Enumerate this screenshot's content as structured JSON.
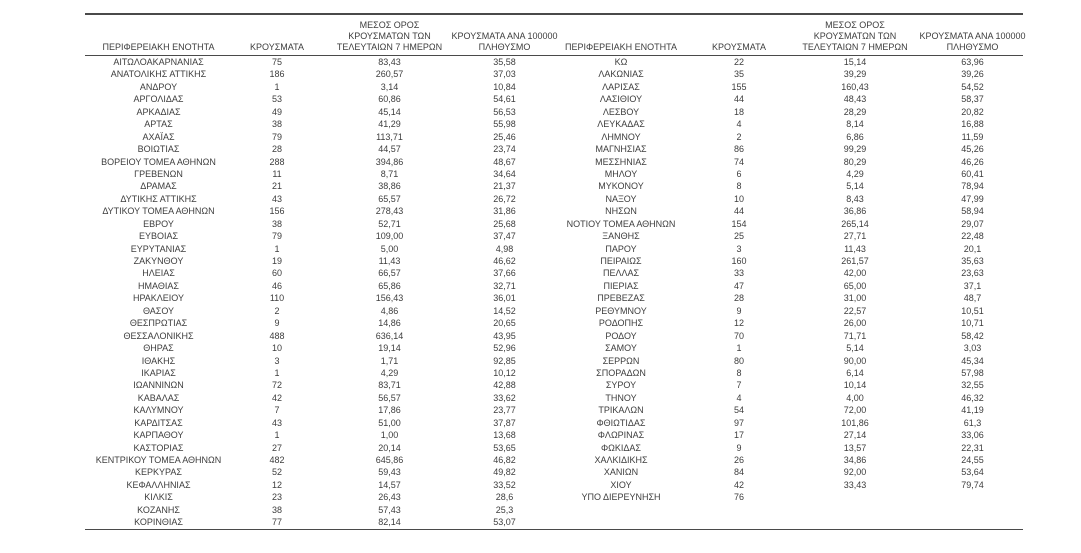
{
  "colors": {
    "background": "#ffffff",
    "text": "#3d3d3d",
    "border": "#4a4a4a"
  },
  "table": {
    "header_left": [
      [
        "ΠΕΡΙΦΕΡΕΙΑΚΗ ΕΝΟΤΗΤΑ"
      ],
      [
        "ΚΡΟΥΣΜΑΤΑ"
      ],
      [
        "ΜΕΣΟΣ ΟΡΟΣ",
        "ΚΡΟΥΣΜΑΤΩΝ ΤΩΝ",
        "ΤΕΛΕΥΤΑΙΩΝ 7 ΗΜΕΡΩΝ"
      ],
      [
        "ΚΡΟΥΣΜΑΤΑ ΑΝΑ 100000",
        "ΠΛΗΘΥΣΜΟ"
      ]
    ],
    "header_right": [
      [
        "ΠΕΡΙΦΕΡΕΙΑΚΗ ΕΝΟΤΗΤΑ"
      ],
      [
        "ΚΡΟΥΣΜΑΤΑ"
      ],
      [
        "ΜΕΣΟΣ ΟΡΟΣ",
        "ΚΡΟΥΣΜΑΤΩΝ ΤΩΝ",
        "ΤΕΛΕΥΤΑΙΩΝ 7 ΗΜΕΡΩΝ"
      ],
      [
        "ΚΡΟΥΣΜΑΤΑ ΑΝΑ 100000",
        "ΠΛΗΘΥΣΜΟ"
      ]
    ],
    "rows_left": [
      [
        "ΑΙΤΩΛΟΑΚΑΡΝΑΝΙΑΣ",
        "75",
        "83,43",
        "35,58"
      ],
      [
        "ΑΝΑΤΟΛΙΚΗΣ ΑΤΤΙΚΗΣ",
        "186",
        "260,57",
        "37,03"
      ],
      [
        "ΑΝΔΡΟΥ",
        "1",
        "3,14",
        "10,84"
      ],
      [
        "ΑΡΓΟΛΙΔΑΣ",
        "53",
        "60,86",
        "54,61"
      ],
      [
        "ΑΡΚΑΔΙΑΣ",
        "49",
        "45,14",
        "56,53"
      ],
      [
        "ΑΡΤΑΣ",
        "38",
        "41,29",
        "55,98"
      ],
      [
        "ΑΧΑΪΑΣ",
        "79",
        "113,71",
        "25,46"
      ],
      [
        "ΒΟΙΩΤΙΑΣ",
        "28",
        "44,57",
        "23,74"
      ],
      [
        "ΒΟΡΕΙΟΥ ΤΟΜΕΑ ΑΘΗΝΩΝ",
        "288",
        "394,86",
        "48,67"
      ],
      [
        "ΓΡΕΒΕΝΩΝ",
        "11",
        "8,71",
        "34,64"
      ],
      [
        "ΔΡΑΜΑΣ",
        "21",
        "38,86",
        "21,37"
      ],
      [
        "ΔΥΤΙΚΗΣ ΑΤΤΙΚΗΣ",
        "43",
        "65,57",
        "26,72"
      ],
      [
        "ΔΥΤΙΚΟΥ ΤΟΜΕΑ ΑΘΗΝΩΝ",
        "156",
        "278,43",
        "31,86"
      ],
      [
        "ΕΒΡΟΥ",
        "38",
        "52,71",
        "25,68"
      ],
      [
        "ΕΥΒΟΙΑΣ",
        "79",
        "109,00",
        "37,47"
      ],
      [
        "ΕΥΡΥΤΑΝΙΑΣ",
        "1",
        "5,00",
        "4,98"
      ],
      [
        "ΖΑΚΥΝΘΟΥ",
        "19",
        "11,43",
        "46,62"
      ],
      [
        "ΗΛΕΙΑΣ",
        "60",
        "66,57",
        "37,66"
      ],
      [
        "ΗΜΑΘΙΑΣ",
        "46",
        "65,86",
        "32,71"
      ],
      [
        "ΗΡΑΚΛΕΙΟΥ",
        "110",
        "156,43",
        "36,01"
      ],
      [
        "ΘΑΣΟΥ",
        "2",
        "4,86",
        "14,52"
      ],
      [
        "ΘΕΣΠΡΩΤΙΑΣ",
        "9",
        "14,86",
        "20,65"
      ],
      [
        "ΘΕΣΣΑΛΟΝΙΚΗΣ",
        "488",
        "636,14",
        "43,95"
      ],
      [
        "ΘΗΡΑΣ",
        "10",
        "19,14",
        "52,96"
      ],
      [
        "ΙΘΑΚΗΣ",
        "3",
        "1,71",
        "92,85"
      ],
      [
        "ΙΚΑΡΙΑΣ",
        "1",
        "4,29",
        "10,12"
      ],
      [
        "ΙΩΑΝΝΙΝΩΝ",
        "72",
        "83,71",
        "42,88"
      ],
      [
        "ΚΑΒΑΛΑΣ",
        "42",
        "56,57",
        "33,62"
      ],
      [
        "ΚΑΛΥΜΝΟΥ",
        "7",
        "17,86",
        "23,77"
      ],
      [
        "ΚΑΡΔΙΤΣΑΣ",
        "43",
        "51,00",
        "37,87"
      ],
      [
        "ΚΑΡΠΑΘΟΥ",
        "1",
        "1,00",
        "13,68"
      ],
      [
        "ΚΑΣΤΟΡΙΑΣ",
        "27",
        "20,14",
        "53,65"
      ],
      [
        "ΚΕΝΤΡΙΚΟΥ ΤΟΜΕΑ ΑΘΗΝΩΝ",
        "482",
        "645,86",
        "46,82"
      ],
      [
        "ΚΕΡΚΥΡΑΣ",
        "52",
        "59,43",
        "49,82"
      ],
      [
        "ΚΕΦΑΛΛΗΝΙΑΣ",
        "12",
        "14,57",
        "33,52"
      ],
      [
        "ΚΙΛΚΙΣ",
        "23",
        "26,43",
        "28,6"
      ],
      [
        "ΚΟΖΑΝΗΣ",
        "38",
        "57,43",
        "25,3"
      ],
      [
        "ΚΟΡΙΝΘΙΑΣ",
        "77",
        "82,14",
        "53,07"
      ]
    ],
    "rows_right": [
      [
        "ΚΩ",
        "22",
        "15,14",
        "63,96"
      ],
      [
        "ΛΑΚΩΝΙΑΣ",
        "35",
        "39,29",
        "39,26"
      ],
      [
        "ΛΑΡΙΣΑΣ",
        "155",
        "160,43",
        "54,52"
      ],
      [
        "ΛΑΣΙΘΙΟΥ",
        "44",
        "48,43",
        "58,37"
      ],
      [
        "ΛΕΣΒΟΥ",
        "18",
        "28,29",
        "20,82"
      ],
      [
        "ΛΕΥΚΑΔΑΣ",
        "4",
        "8,14",
        "16,88"
      ],
      [
        "ΛΗΜΝΟΥ",
        "2",
        "6,86",
        "11,59"
      ],
      [
        "ΜΑΓΝΗΣΙΑΣ",
        "86",
        "99,29",
        "45,26"
      ],
      [
        "ΜΕΣΣΗΝΙΑΣ",
        "74",
        "80,29",
        "46,26"
      ],
      [
        "ΜΗΛΟΥ",
        "6",
        "4,29",
        "60,41"
      ],
      [
        "ΜΥΚΟΝΟΥ",
        "8",
        "5,14",
        "78,94"
      ],
      [
        "ΝΑΞΟΥ",
        "10",
        "8,43",
        "47,99"
      ],
      [
        "ΝΗΣΩΝ",
        "44",
        "36,86",
        "58,94"
      ],
      [
        "ΝΟΤΙΟΥ ΤΟΜΕΑ ΑΘΗΝΩΝ",
        "154",
        "265,14",
        "29,07"
      ],
      [
        "ΞΑΝΘΗΣ",
        "25",
        "27,71",
        "22,48"
      ],
      [
        "ΠΑΡΟΥ",
        "3",
        "11,43",
        "20,1"
      ],
      [
        "ΠΕΙΡΑΙΩΣ",
        "160",
        "261,57",
        "35,63"
      ],
      [
        "ΠΕΛΛΑΣ",
        "33",
        "42,00",
        "23,63"
      ],
      [
        "ΠΙΕΡΙΑΣ",
        "47",
        "65,00",
        "37,1"
      ],
      [
        "ΠΡΕΒΕΖΑΣ",
        "28",
        "31,00",
        "48,7"
      ],
      [
        "ΡΕΘΥΜΝΟΥ",
        "9",
        "22,57",
        "10,51"
      ],
      [
        "ΡΟΔΟΠΗΣ",
        "12",
        "26,00",
        "10,71"
      ],
      [
        "ΡΟΔΟΥ",
        "70",
        "71,71",
        "58,42"
      ],
      [
        "ΣΑΜΟΥ",
        "1",
        "5,14",
        "3,03"
      ],
      [
        "ΣΕΡΡΩΝ",
        "80",
        "90,00",
        "45,34"
      ],
      [
        "ΣΠΟΡΑΔΩΝ",
        "8",
        "6,14",
        "57,98"
      ],
      [
        "ΣΥΡΟΥ",
        "7",
        "10,14",
        "32,55"
      ],
      [
        "ΤΗΝΟΥ",
        "4",
        "4,00",
        "46,32"
      ],
      [
        "ΤΡΙΚΑΛΩΝ",
        "54",
        "72,00",
        "41,19"
      ],
      [
        "ΦΘΙΩΤΙΔΑΣ",
        "97",
        "101,86",
        "61,3"
      ],
      [
        "ΦΛΩΡΙΝΑΣ",
        "17",
        "27,14",
        "33,06"
      ],
      [
        "ΦΩΚΙΔΑΣ",
        "9",
        "13,57",
        "22,31"
      ],
      [
        "ΧΑΛΚΙΔΙΚΗΣ",
        "26",
        "34,86",
        "24,55"
      ],
      [
        "ΧΑΝΙΩΝ",
        "84",
        "92,00",
        "53,64"
      ],
      [
        "ΧΙΟΥ",
        "42",
        "33,43",
        "79,74"
      ],
      [
        "ΥΠΟ ΔΙΕΡΕΥΝΗΣΗ",
        "76",
        "",
        ""
      ]
    ]
  }
}
